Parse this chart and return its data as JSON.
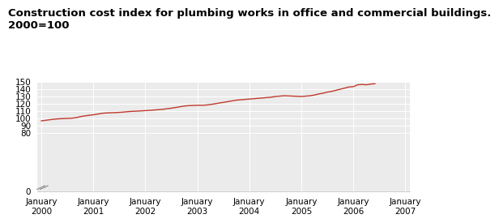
{
  "title_line1": "Construction cost index for plumbing works in office and commercial buildings.",
  "title_line2": "2000=100",
  "title_fontsize": 9.5,
  "line_color": "#c0392b",
  "background_color": "#ffffff",
  "plot_bg_color": "#ebebeb",
  "grid_color": "#ffffff",
  "ylim": [
    0,
    150
  ],
  "yticks": [
    0,
    80,
    90,
    100,
    110,
    120,
    130,
    140,
    150
  ],
  "xtick_labels": [
    "January\n2000",
    "January\n2001",
    "January\n2002",
    "January\n2003",
    "January\n2004",
    "January\n2005",
    "January\n2006",
    "January\n2007"
  ],
  "data": [
    96.2,
    97.0,
    97.8,
    98.5,
    99.0,
    99.3,
    99.5,
    99.8,
    100.5,
    102.0,
    103.0,
    103.8,
    104.5,
    105.5,
    106.5,
    107.0,
    107.2,
    107.5,
    107.8,
    108.2,
    108.8,
    109.2,
    109.5,
    109.8,
    110.2,
    110.5,
    111.0,
    111.5,
    112.0,
    112.8,
    113.5,
    114.5,
    115.5,
    116.5,
    117.0,
    117.3,
    117.5,
    117.5,
    117.8,
    118.5,
    119.5,
    120.5,
    121.5,
    122.5,
    123.5,
    124.5,
    125.0,
    125.5,
    126.0,
    126.5,
    127.0,
    127.5,
    128.0,
    128.5,
    129.5,
    130.0,
    130.5,
    130.3,
    130.0,
    129.8,
    129.5,
    130.0,
    130.5,
    131.5,
    133.0,
    134.0,
    135.5,
    136.5,
    138.0,
    139.5,
    141.0,
    142.5,
    143.0,
    145.5,
    146.0,
    145.5,
    146.5,
    147.0
  ]
}
